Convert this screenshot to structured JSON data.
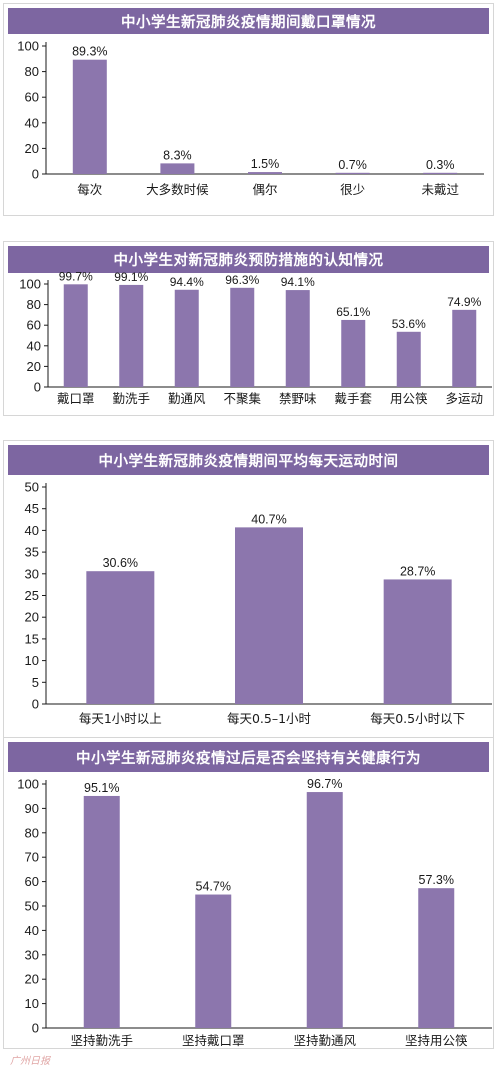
{
  "colors": {
    "bar": "#8c76ad",
    "banner": "#7d66a1",
    "axis": "#1a1a1a",
    "text": "#1a1a1a"
  },
  "watermark": "广州日报",
  "chart_data": [
    {
      "type": "bar",
      "title": "中小学生新冠肺炎疫情期间戴口罩情况",
      "categories": [
        "每次",
        "大多数时候",
        "偶尔",
        "很少",
        "未戴过"
      ],
      "values": [
        89.3,
        8.3,
        1.5,
        0.7,
        0.3
      ],
      "value_labels": [
        "89.3%",
        "8.3%",
        "1.5%",
        "0.7%",
        "0.3%"
      ],
      "ylim": [
        0,
        100
      ],
      "yticks": [
        0,
        20,
        40,
        60,
        80,
        100
      ],
      "xlabel": "",
      "ylabel": "",
      "grid": false,
      "legend": "none"
    },
    {
      "type": "bar",
      "title": "中小学生对新冠肺炎预防措施的认知情况",
      "categories": [
        "戴口罩",
        "勤洗手",
        "勤通风",
        "不聚集",
        "禁野味",
        "戴手套",
        "用公筷",
        "多运动"
      ],
      "values": [
        99.7,
        99.1,
        94.4,
        96.3,
        94.1,
        65.1,
        53.6,
        74.9
      ],
      "value_labels": [
        "99.7%",
        "99.1%",
        "94.4%",
        "96.3%",
        "94.1%",
        "65.1%",
        "53.6%",
        "74.9%"
      ],
      "ylim": [
        0,
        100
      ],
      "yticks": [
        0,
        20,
        40,
        60,
        80,
        100
      ],
      "xlabel": "",
      "ylabel": "",
      "grid": false,
      "legend": "none"
    },
    {
      "type": "bar",
      "title": "中小学生新冠肺炎疫情期间平均每天运动时间",
      "categories": [
        "每天1小时以上",
        "每天0.5–1小时",
        "每天0.5小时以下"
      ],
      "values": [
        30.6,
        40.7,
        28.7
      ],
      "value_labels": [
        "30.6%",
        "40.7%",
        "28.7%"
      ],
      "ylim": [
        0,
        50
      ],
      "yticks": [
        0,
        5,
        10,
        15,
        20,
        25,
        30,
        35,
        40,
        45,
        50
      ],
      "xlabel": "",
      "ylabel": "",
      "grid": false,
      "legend": "none"
    },
    {
      "type": "bar",
      "title": "中小学生新冠肺炎疫情过后是否会坚持有关健康行为",
      "categories": [
        "坚持勤洗手",
        "坚持戴口罩",
        "坚持勤通风",
        "坚持用公筷"
      ],
      "values": [
        95.1,
        54.7,
        96.7,
        57.3
      ],
      "value_labels": [
        "95.1%",
        "54.7%",
        "96.7%",
        "57.3%"
      ],
      "ylim": [
        0,
        100
      ],
      "yticks": [
        0,
        10,
        20,
        30,
        40,
        50,
        60,
        70,
        80,
        90,
        100
      ],
      "xlabel": "",
      "ylabel": "",
      "grid": false,
      "legend": "none"
    }
  ]
}
